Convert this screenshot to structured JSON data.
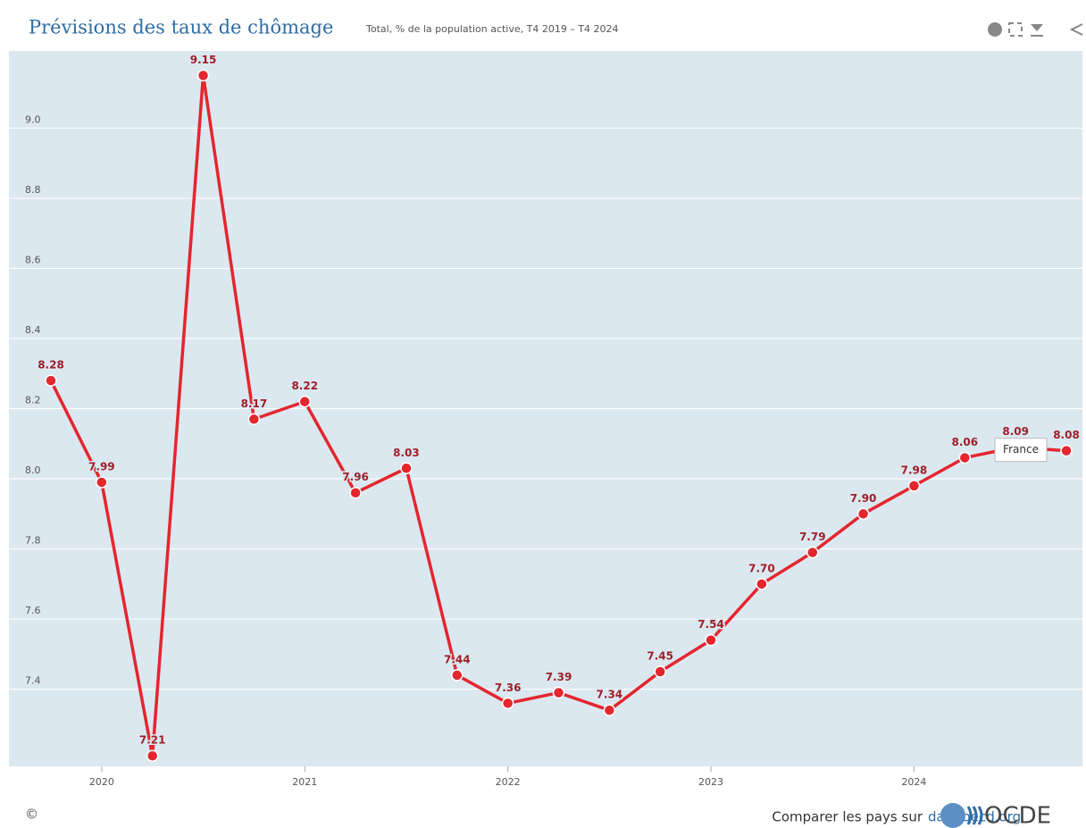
{
  "chart_data": {
    "type": "line",
    "title": "Prévisions des taux de chômage",
    "subtitle": "Total, % de la population active, T4 2019 – T4 2024",
    "categories": [
      null,
      "2020",
      null,
      null,
      null,
      "2021",
      null,
      null,
      null,
      "2022",
      null,
      null,
      null,
      "2023",
      null,
      null,
      null,
      "2024",
      null,
      null,
      null
    ],
    "series": [
      {
        "name": "France",
        "color": "#e4262f",
        "values": [
          8.28,
          7.99,
          7.21,
          9.15,
          8.17,
          8.22,
          7.96,
          8.03,
          7.44,
          7.36,
          7.39,
          7.34,
          7.45,
          7.54,
          7.7,
          7.79,
          7.9,
          7.98,
          8.06,
          8.09,
          8.08
        ],
        "value_labels": [
          "8.28",
          "7.99",
          "7.21",
          "9.15",
          "8.17",
          "8.22",
          "7.96",
          "8.03",
          "7.44",
          "7.36",
          "7.39",
          "7.34",
          "7.45",
          "7.54",
          "7.70",
          "7.79",
          "7.90",
          "7.98",
          "8.06",
          "8.09",
          "8.08"
        ]
      }
    ],
    "ylim": [
      7.18,
      9.22
    ],
    "yticks": [
      7.4,
      7.6,
      7.8,
      {
        "value": 8,
        "label": "8.0"
      },
      8.2,
      8.4,
      8.6,
      8.8,
      {
        "value": 9,
        "label": "9.0"
      }
    ],
    "grid": true,
    "footer": {
      "copyright": "©",
      "compare": "Comparer les pays sur",
      "link": "data.oecd.org",
      "logo": "OCDE"
    }
  }
}
